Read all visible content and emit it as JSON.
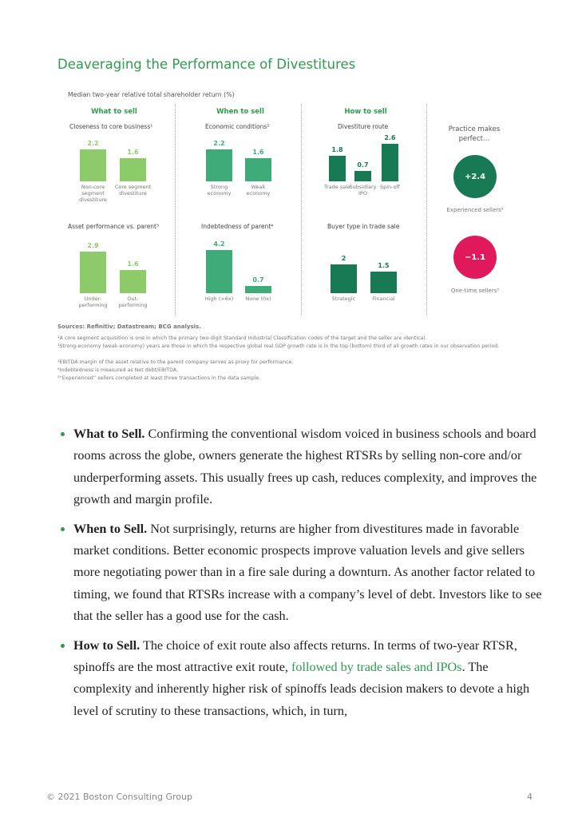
{
  "header": {
    "title": "Deaveraging the Performance of Divestitures"
  },
  "figure": {
    "subtitle": "Median two-year relative total shareholder return (%)",
    "columns": [
      "What to sell",
      "When to sell",
      "How to sell"
    ],
    "panels": [
      {
        "title": "Closeness to core business¹",
        "color": "#8dcb6a",
        "categories": [
          "Non-core segment divestiture",
          "Core segment divestiture"
        ],
        "values": [
          2.2,
          1.6
        ]
      },
      {
        "title": "Economic conditions²",
        "color": "#3eab78",
        "categories": [
          "Strong economy",
          "Weak economy"
        ],
        "values": [
          2.2,
          1.6
        ]
      },
      {
        "title": "Divestiture route",
        "color": "#177a55",
        "categories": [
          "Trade sale",
          "Subsidiary IPO",
          "Spin-off"
        ],
        "values": [
          1.8,
          0.7,
          2.6
        ]
      },
      {
        "title": "Asset performance vs. parent³",
        "color": "#8dcb6a",
        "categories": [
          "Under-performing",
          "Out-performing"
        ],
        "values": [
          2.9,
          1.6
        ]
      },
      {
        "title": "Indebtedness of parent⁴",
        "color": "#3eab78",
        "categories": [
          "High (>6x)",
          "None (0x)"
        ],
        "values": [
          4.2,
          0.7
        ]
      },
      {
        "title": "Buyer type in trade sale",
        "color": "#177a55",
        "categories": [
          "Strategic",
          "Financial"
        ],
        "values": [
          2.0,
          1.5
        ]
      }
    ],
    "practice": {
      "title": "Practice makes perfect…",
      "items": [
        {
          "label": "Experienced sellers⁵",
          "value": 2.4,
          "value_label": "+2.4",
          "color": "#177a55"
        },
        {
          "label": "One-time sellers⁵",
          "value": -1.1,
          "value_label": "−1.1",
          "color": "#e0195a"
        }
      ]
    },
    "sources": "Sources: Refinitiv; Datastream; BCG analysis.",
    "footnotes": [
      "¹A core segment acquisition is one in which the primary two-digit Standard Industrial Classification codes of the target and the seller are identical.",
      "²Strong-economy (weak-economy) years are those in which the respective global real GDP growth rate is in the top (bottom) third of all growth rates in our observation period.",
      "³EBITDA margin of the asset relative to the parent company serves as proxy for performance.",
      "⁴Indebtedness is measured as Net debt/EBITDA.",
      "⁵“Experienced” sellers completed at least three transactions in the data sample."
    ]
  },
  "bullets": [
    {
      "heading": "What to Sell.",
      "text": "Confirming the conventional wisdom voiced in business schools and board rooms across the globe, owners generate the highest RTSRs by selling non-core and/or underperforming assets. This usually frees up cash, reduces complexity, and improves the growth and margin profile."
    },
    {
      "heading": "When to Sell.",
      "text": "Not surprisingly, returns are higher from divestitures made in favorable market conditions. Better economic prospects improve valuation levels and give sellers more negotiating power than in a fire sale during a downturn. As another factor related to timing, we found that RTSRs increase with a company’s level of debt. Investors like to see that the seller has a good use for the cash."
    },
    {
      "heading": "How to Sell.",
      "text": "The choice of exit route also affects returns. In terms of two-year RTSR, spinoffs are the most attractive exit route,",
      "link": "followed by trade sales and IPOs",
      "text_after": ". The complexity and inherently higher risk of spinoffs leads decision makers to devote a high level of scrutiny to these transactions, which, in turn,"
    }
  ],
  "footer": {
    "copyright": "© 2021 Boston Consulting Group",
    "page": "4"
  }
}
